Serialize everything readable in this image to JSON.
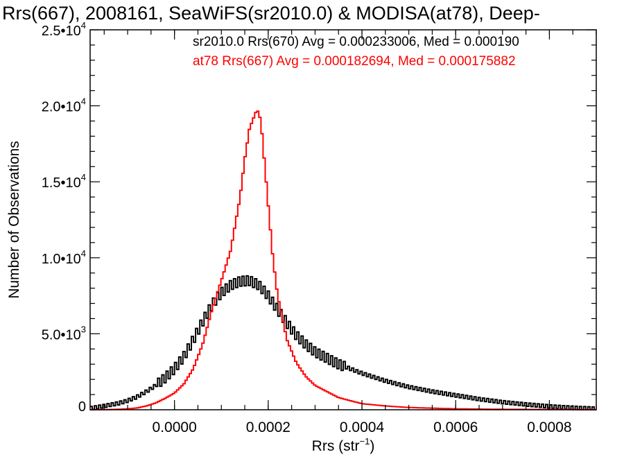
{
  "chart_data": {
    "type": "line",
    "title": "Rrs(667), 2008161, SeaWiFS(sr2010.0) & MODISA(at78), Deep-",
    "xlabel": "Rrs (str",
    "xlabel_sup": "−1",
    "xlabel_close": ")",
    "ylabel": "Number of Observations",
    "xlim": [
      -0.00018,
      0.0009
    ],
    "ylim": [
      0,
      25000
    ],
    "xticks": [
      0,
      0.0002,
      0.0004,
      0.0006,
      0.0008
    ],
    "xtick_labels": [
      "0.0000",
      "0.0002",
      "0.0004",
      "0.0006",
      "0.0008"
    ],
    "yticks": [
      {
        "value": 0,
        "mant": "0",
        "exp": ""
      },
      {
        "value": 5000,
        "mant": "5.0•10",
        "exp": "3"
      },
      {
        "value": 10000,
        "mant": "1.0•10",
        "exp": "4"
      },
      {
        "value": 15000,
        "mant": "1.5•10",
        "exp": "4"
      },
      {
        "value": 20000,
        "mant": "2.0•10",
        "exp": "4"
      },
      {
        "value": 25000,
        "mant": "2.5•10",
        "exp": "4"
      }
    ],
    "grid": false,
    "annotations": [
      {
        "text": "sr2010.0 Rrs(670) Avg = 0.000233006, Med = 0.000190",
        "color": "#000000"
      },
      {
        "text": "at78 Rrs(667) Avg = 0.000182694, Med = 0.000175882",
        "color": "#ff0000"
      }
    ],
    "series": [
      {
        "color": "#000000",
        "x": [
          -0.00018,
          -0.00015,
          -0.00012,
          -0.0001,
          -8e-05,
          -6e-05,
          -4e-05,
          -2e-05,
          0.0,
          2e-05,
          4e-05,
          6e-05,
          8e-05,
          0.0001,
          0.00012,
          0.00014,
          0.00016,
          0.00018,
          0.0002,
          0.00022,
          0.00024,
          0.00026,
          0.00028,
          0.0003,
          0.00035,
          0.0004,
          0.00045,
          0.0005,
          0.00055,
          0.0006,
          0.00065,
          0.0007,
          0.00075,
          0.0008,
          0.00085,
          0.0009
        ],
        "values": [
          100,
          250,
          420,
          600,
          850,
          1200,
          1600,
          2100,
          2700,
          3500,
          4600,
          5800,
          6900,
          7700,
          8200,
          8450,
          8500,
          8200,
          7500,
          6600,
          5700,
          4900,
          4300,
          3800,
          3000,
          2400,
          1900,
          1500,
          1200,
          950,
          700,
          500,
          350,
          220,
          130,
          70
        ]
      },
      {
        "color": "#ff0000",
        "x": [
          -0.00018,
          -0.00015,
          -0.00012,
          -0.0001,
          -8e-05,
          -6e-05,
          -4e-05,
          -2e-05,
          0.0,
          2e-05,
          4e-05,
          6e-05,
          8e-05,
          0.0001,
          0.00012,
          0.00014,
          0.00015,
          0.00016,
          0.00017,
          0.000175,
          0.00018,
          0.000185,
          0.00019,
          0.0002,
          0.00021,
          0.00022,
          0.00024,
          0.00026,
          0.00028,
          0.0003,
          0.00035,
          0.0004,
          0.00045,
          0.0005,
          0.0006,
          0.0007,
          0.0009
        ],
        "values": [
          0,
          10,
          30,
          60,
          120,
          250,
          450,
          750,
          1100,
          1700,
          2700,
          4300,
          6600,
          8500,
          10500,
          14000,
          16500,
          18500,
          19300,
          19700,
          19600,
          18800,
          17000,
          13500,
          10000,
          7500,
          4600,
          3100,
          2200,
          1600,
          800,
          400,
          250,
          150,
          60,
          30,
          10
        ]
      }
    ]
  }
}
